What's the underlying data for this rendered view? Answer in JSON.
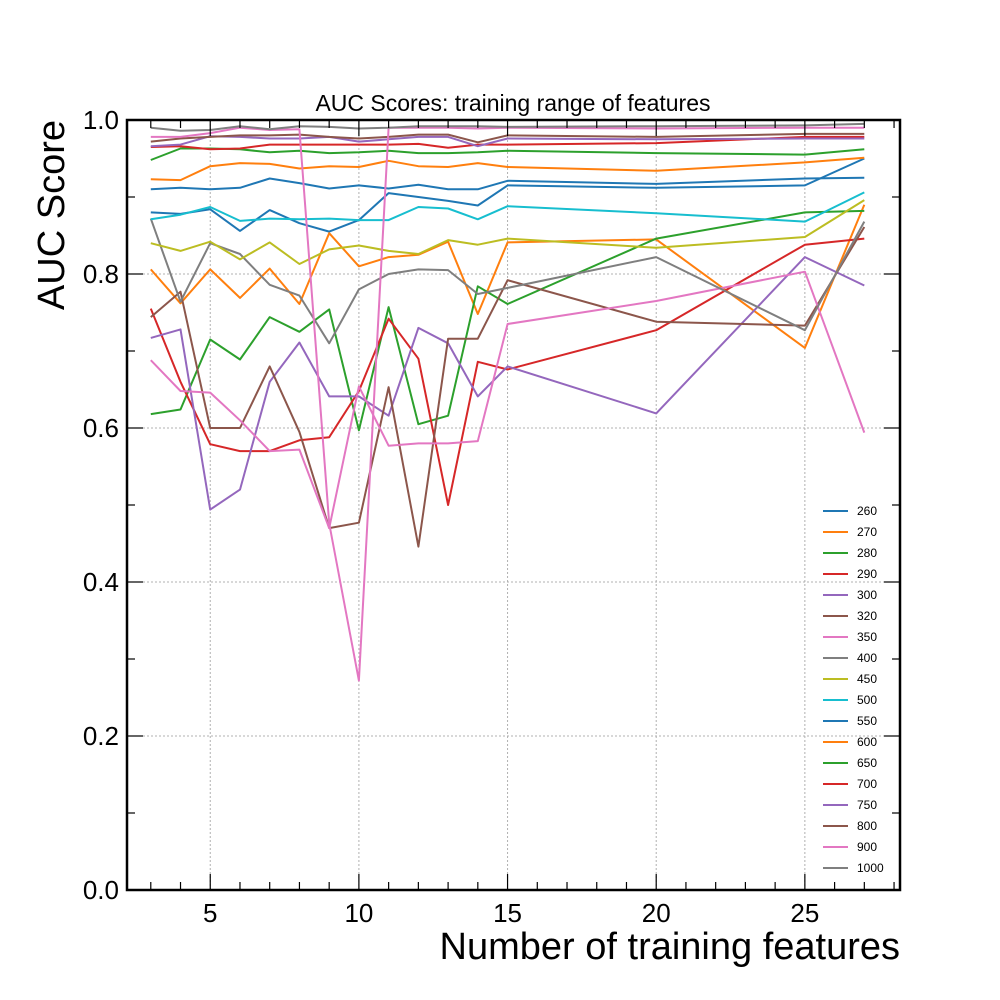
{
  "chart_data": {
    "type": "line",
    "title": "AUC Scores: training range of features",
    "xlabel": "Number of training features",
    "ylabel": "AUC Score",
    "xlim": [
      2.2,
      28.2
    ],
    "ylim": [
      0.0,
      1.0
    ],
    "xticks": [
      5,
      10,
      15,
      20,
      25
    ],
    "yticks": [
      0.0,
      0.2,
      0.4,
      0.6,
      0.8,
      1.0
    ],
    "ytick_labels": [
      "0.0",
      "0.2",
      "0.4",
      "0.6",
      "0.8",
      "1.0"
    ],
    "grid": true,
    "legend_position": "lower-right",
    "x": [
      3,
      4,
      5,
      6,
      7,
      8,
      9,
      10,
      11,
      12,
      13,
      14,
      15,
      20,
      25,
      27
    ],
    "series": [
      {
        "name": "260",
        "color": "#1f77b4",
        "values": [
          0.88,
          0.878,
          0.884,
          0.856,
          0.883,
          0.866,
          0.855,
          0.87,
          0.905,
          0.9,
          0.895,
          0.889,
          0.915,
          0.912,
          0.915,
          0.95
        ]
      },
      {
        "name": "270",
        "color": "#ff7f0e",
        "values": [
          0.806,
          0.762,
          0.806,
          0.769,
          0.807,
          0.761,
          0.853,
          0.81,
          0.822,
          0.825,
          0.842,
          0.748,
          0.841,
          0.845,
          0.704,
          0.89
        ]
      },
      {
        "name": "280",
        "color": "#2ca02c",
        "values": [
          0.618,
          0.624,
          0.715,
          0.689,
          0.744,
          0.725,
          0.754,
          0.597,
          0.757,
          0.605,
          0.616,
          0.784,
          0.761,
          0.846,
          0.88,
          0.882
        ]
      },
      {
        "name": "290",
        "color": "#d62728",
        "values": [
          0.755,
          0.66,
          0.579,
          0.57,
          0.57,
          0.584,
          0.588,
          0.648,
          0.742,
          0.69,
          0.5,
          0.686,
          0.676,
          0.727,
          0.838,
          0.846
        ]
      },
      {
        "name": "300",
        "color": "#9467bd",
        "values": [
          0.717,
          0.728,
          0.494,
          0.52,
          0.66,
          0.711,
          0.641,
          0.641,
          0.616,
          0.73,
          0.71,
          0.641,
          0.68,
          0.619,
          0.822,
          0.785
        ]
      },
      {
        "name": "320",
        "color": "#8c564b",
        "values": [
          0.744,
          0.777,
          0.6,
          0.6,
          0.68,
          0.595,
          0.47,
          0.477,
          0.653,
          0.446,
          0.716,
          0.716,
          0.792,
          0.738,
          0.733,
          0.861
        ]
      },
      {
        "name": "350",
        "color": "#e377c2",
        "values": [
          0.688,
          0.648,
          0.646,
          0.61,
          0.57,
          0.572,
          0.47,
          0.654,
          0.577,
          0.58,
          0.58,
          0.583,
          0.735,
          0.765,
          0.803,
          0.594
        ]
      },
      {
        "name": "400",
        "color": "#7f7f7f",
        "values": [
          0.872,
          0.764,
          0.84,
          0.826,
          0.786,
          0.772,
          0.71,
          0.78,
          0.8,
          0.806,
          0.805,
          0.774,
          0.782,
          0.822,
          0.727,
          0.868
        ]
      },
      {
        "name": "450",
        "color": "#bcbd22",
        "values": [
          0.84,
          0.83,
          0.842,
          0.819,
          0.841,
          0.813,
          0.832,
          0.837,
          0.83,
          0.826,
          0.844,
          0.838,
          0.846,
          0.834,
          0.848,
          0.896
        ]
      },
      {
        "name": "500",
        "color": "#17becf",
        "values": [
          0.871,
          0.877,
          0.887,
          0.869,
          0.872,
          0.871,
          0.872,
          0.87,
          0.87,
          0.887,
          0.885,
          0.871,
          0.888,
          0.879,
          0.868,
          0.906
        ]
      },
      {
        "name": "550",
        "color": "#1f77b4",
        "values": [
          0.91,
          0.912,
          0.91,
          0.912,
          0.924,
          0.918,
          0.911,
          0.915,
          0.911,
          0.916,
          0.91,
          0.91,
          0.921,
          0.917,
          0.924,
          0.925
        ]
      },
      {
        "name": "600",
        "color": "#ff7f0e",
        "values": [
          0.923,
          0.922,
          0.94,
          0.944,
          0.943,
          0.937,
          0.94,
          0.939,
          0.947,
          0.94,
          0.939,
          0.944,
          0.939,
          0.934,
          0.945,
          0.951
        ]
      },
      {
        "name": "650",
        "color": "#2ca02c",
        "values": [
          0.948,
          0.963,
          0.963,
          0.962,
          0.958,
          0.96,
          0.957,
          0.958,
          0.96,
          0.957,
          0.957,
          0.958,
          0.96,
          0.957,
          0.955,
          0.962
        ]
      },
      {
        "name": "700",
        "color": "#d62728",
        "values": [
          0.965,
          0.966,
          0.962,
          0.963,
          0.968,
          0.968,
          0.968,
          0.968,
          0.968,
          0.969,
          0.964,
          0.968,
          0.968,
          0.97,
          0.978,
          0.978
        ]
      },
      {
        "name": "750",
        "color": "#9467bd",
        "values": [
          0.966,
          0.968,
          0.979,
          0.978,
          0.976,
          0.976,
          0.978,
          0.972,
          0.975,
          0.978,
          0.978,
          0.966,
          0.976,
          0.975,
          0.976,
          0.976
        ]
      },
      {
        "name": "800",
        "color": "#8c564b",
        "values": [
          0.972,
          0.976,
          0.978,
          0.98,
          0.98,
          0.981,
          0.978,
          0.976,
          0.978,
          0.981,
          0.981,
          0.971,
          0.98,
          0.978,
          0.982,
          0.982
        ]
      },
      {
        "name": "900",
        "color": "#e377c2",
        "values": [
          0.978,
          0.978,
          0.983,
          0.99,
          0.987,
          0.988,
          0.476,
          0.272,
          0.99,
          0.99,
          0.99,
          0.989,
          0.99,
          0.989,
          0.99,
          0.99
        ]
      },
      {
        "name": "1000",
        "color": "#7f7f7f",
        "values": [
          0.99,
          0.986,
          0.987,
          0.992,
          0.988,
          0.992,
          0.991,
          0.989,
          0.99,
          0.992,
          0.992,
          0.992,
          0.991,
          0.992,
          0.993,
          0.995
        ]
      }
    ]
  }
}
